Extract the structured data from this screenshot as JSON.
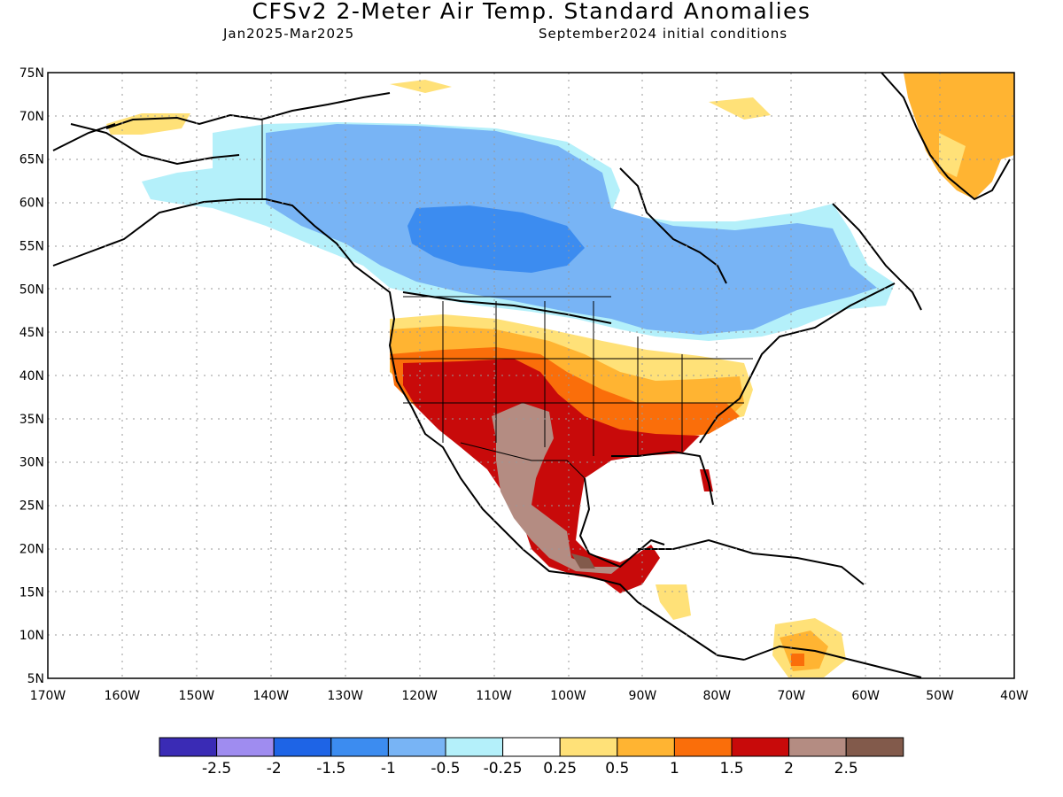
{
  "title": "CFSv2 2-Meter Air Temp. Standard Anomalies",
  "subtitle_left": "Jan2025-Mar2025",
  "subtitle_right": "September2024 initial conditions",
  "map": {
    "lat_labels": [
      "75N",
      "70N",
      "65N",
      "60N",
      "55N",
      "50N",
      "45N",
      "40N",
      "35N",
      "30N",
      "25N",
      "20N",
      "15N",
      "10N",
      "5N"
    ],
    "lon_labels": [
      "170W",
      "160W",
      "150W",
      "140W",
      "130W",
      "120W",
      "110W",
      "100W",
      "90W",
      "80W",
      "70W",
      "60W",
      "50W",
      "40W"
    ],
    "extent": {
      "lon_min": -170,
      "lon_max": -40,
      "lat_min": 5,
      "lat_max": 75
    }
  },
  "colorbar": {
    "colors": [
      "#3a2bb5",
      "#9f8cf0",
      "#1e64e6",
      "#3c8cf0",
      "#78b4f5",
      "#b4f0fa",
      "#ffffff",
      "#ffe178",
      "#ffb432",
      "#fa6e0a",
      "#c80a0a",
      "#b48c82",
      "#825a4b"
    ],
    "labels": [
      "-2.5",
      "-2",
      "-1.5",
      "-1",
      "-0.5",
      "-0.25",
      "0.25",
      "0.5",
      "1",
      "1.5",
      "2",
      "2.5"
    ]
  },
  "anomaly_colors": {
    "cool_light": "#b4f0fa",
    "cool_mid": "#78b4f5",
    "cool_strong": "#3c8cf0",
    "warm_light": "#ffe178",
    "warm_mid": "#ffb432",
    "warm_strong": "#fa6e0a",
    "warm_very": "#c80a0a",
    "warm_extreme": "#b48c82",
    "warm_max": "#825a4b"
  }
}
